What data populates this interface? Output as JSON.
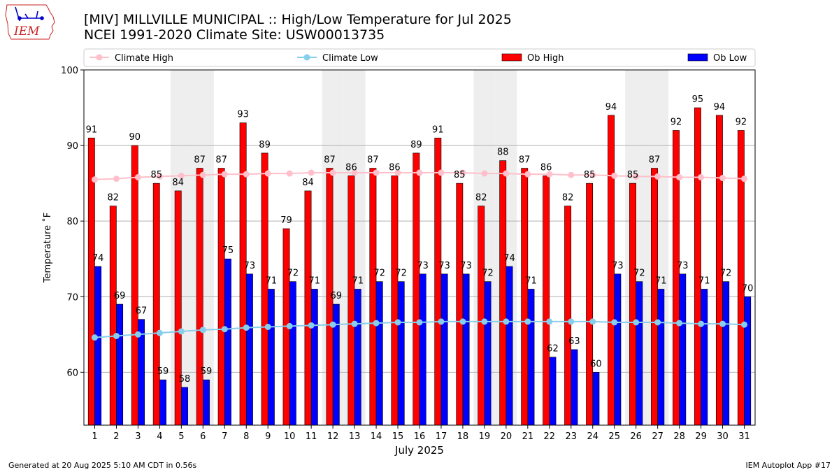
{
  "header": {
    "logo_text": "IEM",
    "title_line1": "[MIV] MILLVILLE MUNICIPAL :: High/Low Temperature for Jul 2025",
    "title_line2": "NCEI 1991-2020 Climate Site: USW00013735"
  },
  "footer": {
    "generated": "Generated at 20 Aug 2025 5:10 AM CDT in 0.56s",
    "app": "IEM Autoplot App #17"
  },
  "colors": {
    "climate_high": "#ffc0cb",
    "climate_low": "#87ceeb",
    "ob_high": "#ff0000",
    "ob_low": "#0000ff",
    "weekend_shade": "#eeeeee",
    "grid": "#b0b0b0",
    "logo_red": "#cc2222"
  },
  "chart_data": {
    "type": "bar",
    "xlabel": "July 2025",
    "ylabel": "Temperature ˚F",
    "ylim": [
      53,
      100
    ],
    "yticks": [
      60,
      70,
      80,
      90,
      100
    ],
    "grid": true,
    "legend_position": "top",
    "categories": [
      "1",
      "2",
      "3",
      "4",
      "5",
      "6",
      "7",
      "8",
      "9",
      "10",
      "11",
      "12",
      "13",
      "14",
      "15",
      "16",
      "17",
      "18",
      "19",
      "20",
      "21",
      "22",
      "23",
      "24",
      "25",
      "26",
      "27",
      "28",
      "29",
      "30",
      "31"
    ],
    "shaded_days": [
      5,
      6,
      12,
      13,
      19,
      20,
      26,
      27
    ],
    "series": [
      {
        "name": "Climate High",
        "kind": "line",
        "values": [
          85.5,
          85.6,
          85.8,
          85.9,
          86.0,
          86.1,
          86.2,
          86.2,
          86.3,
          86.3,
          86.4,
          86.4,
          86.4,
          86.4,
          86.4,
          86.4,
          86.4,
          86.4,
          86.3,
          86.3,
          86.2,
          86.2,
          86.1,
          86.1,
          86.0,
          85.9,
          85.9,
          85.8,
          85.8,
          85.7,
          85.6
        ]
      },
      {
        "name": "Climate Low",
        "kind": "line",
        "values": [
          64.6,
          64.8,
          65.0,
          65.2,
          65.4,
          65.6,
          65.7,
          65.9,
          66.0,
          66.1,
          66.2,
          66.3,
          66.4,
          66.5,
          66.6,
          66.6,
          66.7,
          66.7,
          66.7,
          66.7,
          66.7,
          66.7,
          66.7,
          66.7,
          66.6,
          66.6,
          66.6,
          66.5,
          66.4,
          66.4,
          66.3
        ]
      },
      {
        "name": "Ob High",
        "kind": "bar",
        "values": [
          91,
          82,
          90,
          85,
          84,
          87,
          87,
          93,
          89,
          79,
          84,
          87,
          86,
          87,
          86,
          89,
          91,
          85,
          82,
          88,
          87,
          86,
          82,
          85,
          94,
          85,
          87,
          92,
          95,
          94,
          92
        ]
      },
      {
        "name": "Ob Low",
        "kind": "bar",
        "values": [
          74,
          69,
          67,
          59,
          58,
          59,
          75,
          73,
          71,
          72,
          71,
          69,
          71,
          72,
          72,
          73,
          73,
          73,
          72,
          74,
          71,
          62,
          63,
          60,
          73,
          72,
          71,
          73,
          71,
          72,
          70
        ]
      }
    ]
  }
}
